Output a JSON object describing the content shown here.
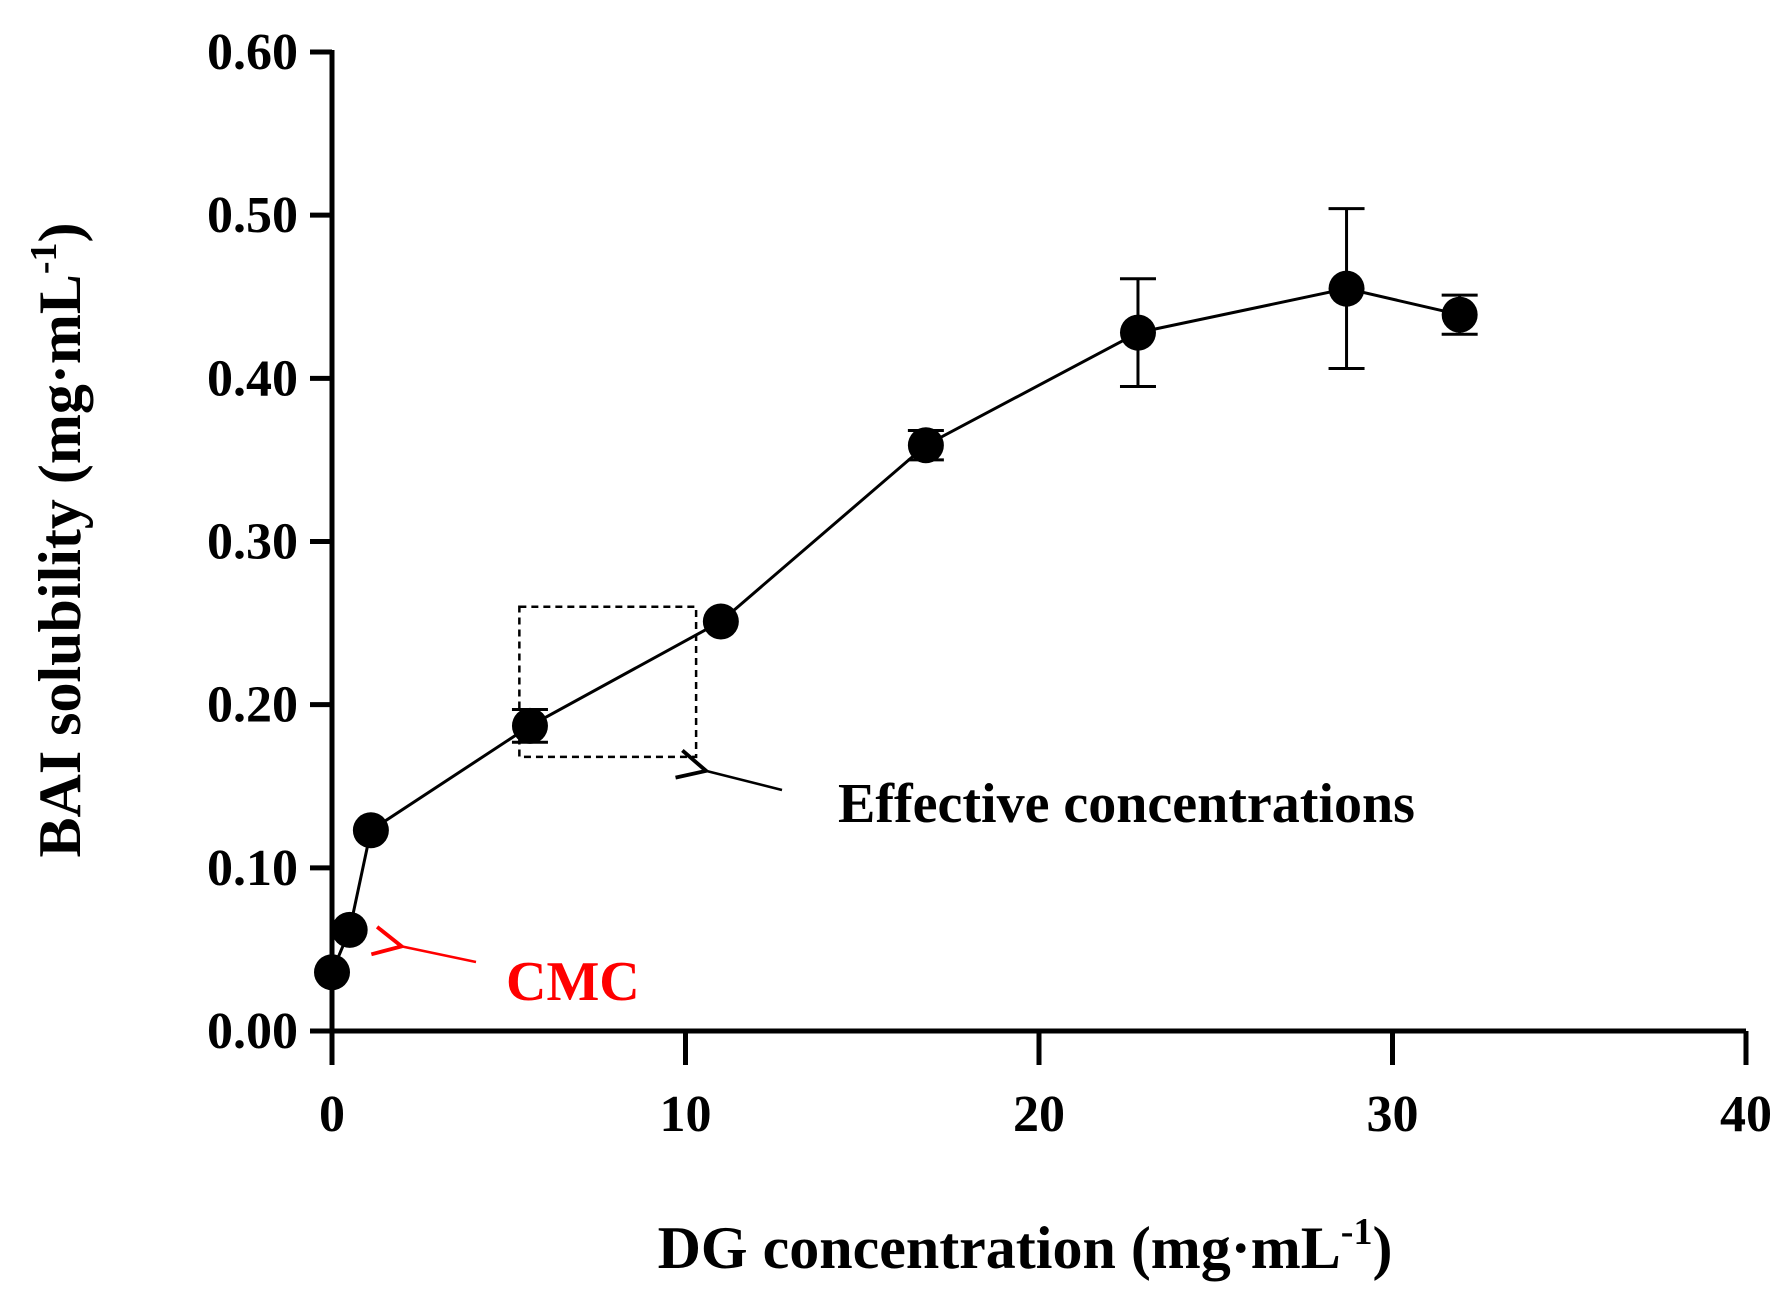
{
  "chart_data": {
    "type": "line",
    "xlabel": "DG concentration (mg·mL",
    "xlabel_sup": "-1",
    "xlabel_end": ")",
    "ylabel": "BAI solubility (mg·mL",
    "ylabel_sup": "-1",
    "ylabel_end": ")",
    "xlim": [
      0,
      40
    ],
    "ylim": [
      0,
      0.6
    ],
    "xticks": [
      0,
      10,
      20,
      30,
      40
    ],
    "xtick_labels": [
      "0",
      "10",
      "20",
      "30",
      "40"
    ],
    "yticks": [
      0,
      0.1,
      0.2,
      0.3,
      0.4,
      0.5,
      0.6
    ],
    "ytick_labels": [
      "0.00",
      "0.10",
      "0.20",
      "0.30",
      "0.40",
      "0.50",
      "0.60"
    ],
    "series": [
      {
        "name": "BAI solubility",
        "x": [
          0.0,
          0.5,
          1.1,
          5.6,
          11.0,
          16.8,
          22.8,
          28.7,
          31.9
        ],
        "y": [
          0.036,
          0.062,
          0.123,
          0.187,
          0.251,
          0.359,
          0.428,
          0.455,
          0.439
        ],
        "err": [
          0.0,
          0.0,
          0.0,
          0.01,
          0.0,
          0.009,
          0.033,
          0.049,
          0.012
        ]
      }
    ],
    "annotations": [
      {
        "id": "effective",
        "text": "Effective concentrations",
        "color": "#000000",
        "box_x": [
          5.3,
          10.3
        ],
        "box_y": [
          0.168,
          0.26
        ]
      },
      {
        "id": "cmc",
        "text": "CMC",
        "color": "#ff0000",
        "target_x": 1.8,
        "target_y": 0.058
      }
    ]
  }
}
